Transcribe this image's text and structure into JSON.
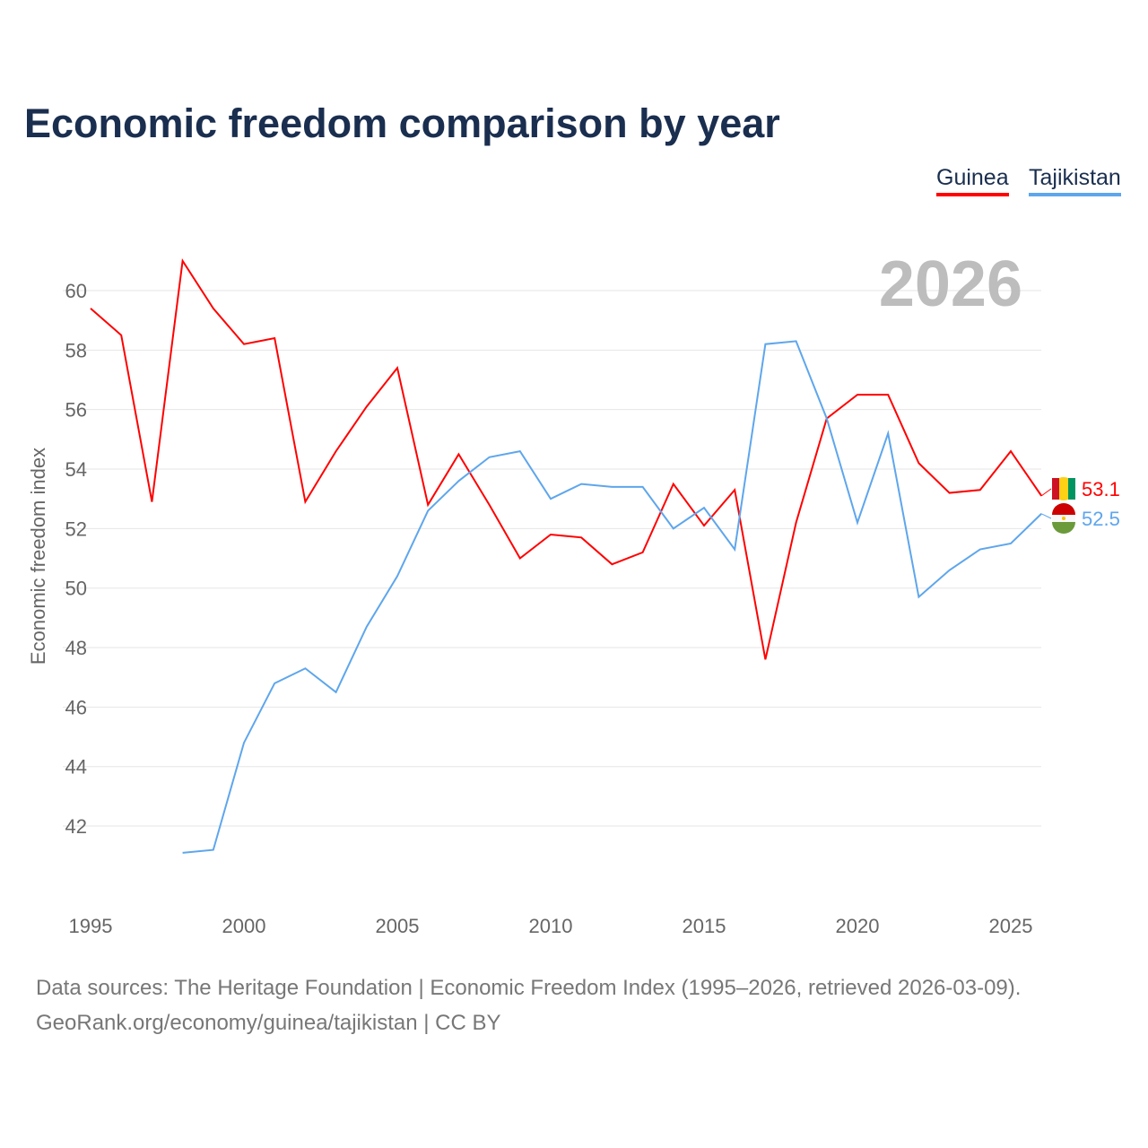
{
  "chart_data": {
    "type": "line",
    "title": "Economic freedom comparison by year",
    "ylabel": "Economic freedom index",
    "xlabel": "",
    "ylim": [
      40,
      61.5
    ],
    "xlim": [
      1995,
      2026
    ],
    "yticks": [
      42,
      44,
      46,
      48,
      50,
      52,
      54,
      56,
      58,
      60
    ],
    "xticks": [
      1995,
      2000,
      2005,
      2010,
      2015,
      2020,
      2025
    ],
    "grid": true,
    "legend_placement": "top-right",
    "year_label": "2026",
    "series": [
      {
        "name": "Guinea",
        "color": "#ff0000",
        "end_label": "53.1",
        "x": [
          1995,
          1996,
          1997,
          1998,
          1999,
          2000,
          2001,
          2002,
          2003,
          2004,
          2005,
          2006,
          2007,
          2008,
          2009,
          2010,
          2011,
          2012,
          2013,
          2014,
          2015,
          2016,
          2017,
          2018,
          2019,
          2020,
          2021,
          2022,
          2023,
          2024,
          2025,
          2026
        ],
        "values": [
          59.4,
          58.5,
          52.9,
          61.0,
          59.4,
          58.2,
          58.4,
          52.9,
          54.6,
          56.1,
          57.4,
          52.8,
          54.5,
          52.8,
          51.0,
          51.8,
          51.7,
          50.8,
          51.2,
          53.5,
          52.1,
          53.3,
          47.6,
          52.2,
          55.7,
          56.5,
          56.5,
          54.2,
          53.2,
          53.3,
          54.6,
          53.1
        ]
      },
      {
        "name": "Tajikistan",
        "color": "#5ea6ec",
        "end_label": "52.5",
        "x": [
          1998,
          1999,
          2000,
          2001,
          2002,
          2003,
          2004,
          2005,
          2006,
          2007,
          2008,
          2009,
          2010,
          2011,
          2012,
          2013,
          2014,
          2015,
          2016,
          2017,
          2018,
          2019,
          2020,
          2021,
          2022,
          2023,
          2024,
          2025,
          2026
        ],
        "values": [
          41.1,
          41.2,
          44.8,
          46.8,
          47.3,
          46.5,
          48.7,
          50.4,
          52.6,
          53.6,
          54.4,
          54.6,
          53.0,
          53.5,
          53.4,
          53.4,
          52.0,
          52.7,
          51.3,
          58.2,
          58.3,
          55.7,
          52.2,
          55.2,
          49.7,
          50.6,
          51.3,
          51.5,
          52.5
        ]
      }
    ]
  },
  "footer": {
    "line1": "Data sources: The Heritage Foundation | Economic Freedom Index (1995–2026, retrieved 2026-03-09).",
    "line2": "GeoRank.org/economy/guinea/tajikistan | CC BY"
  }
}
